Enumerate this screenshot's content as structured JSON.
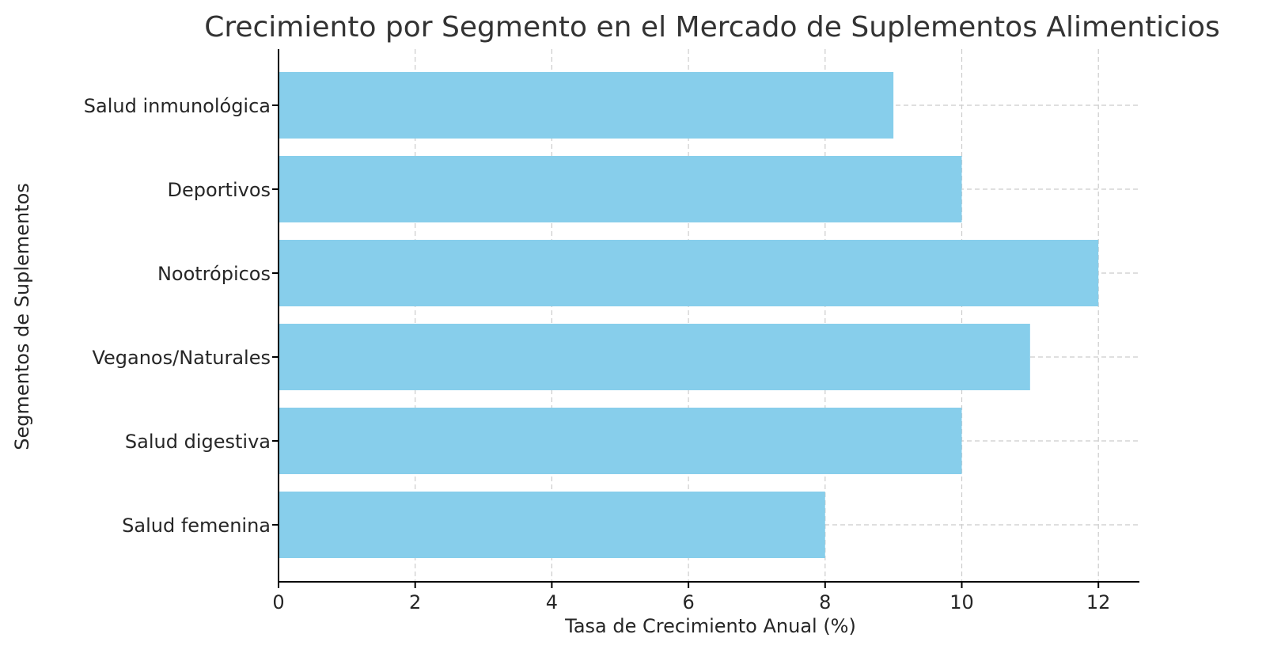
{
  "chart_data": {
    "type": "bar",
    "orientation": "horizontal",
    "title": "Crecimiento por Segmento en el Mercado de Suplementos Alimenticios",
    "xlabel": "Tasa de Crecimiento Anual (%)",
    "ylabel": "Segmentos de Suplementos",
    "categories": [
      "Salud femenina",
      "Salud digestiva",
      "Veganos/Naturales",
      "Nootrópicos",
      "Deportivos",
      "Salud inmunológica"
    ],
    "values": [
      8,
      10,
      11,
      12,
      10,
      9
    ],
    "xlim": [
      0,
      12.6
    ],
    "xticks": [
      0,
      2,
      4,
      6,
      8,
      10,
      12
    ],
    "grid": true,
    "bar_color": "#87ceeb",
    "legend": "none"
  }
}
